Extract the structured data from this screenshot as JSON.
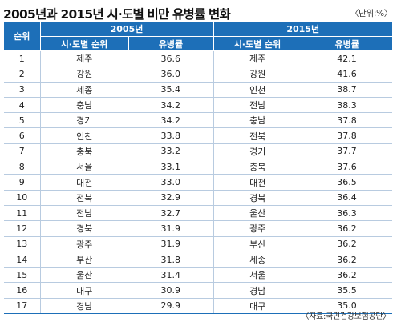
{
  "title": "2005년과 2015년 시·도별 비만 유병률 변화",
  "unit": "〈단위:%〉",
  "header": {
    "rank": "순위",
    "year1": "2005년",
    "year2": "2015년",
    "region": "시·도별 순위",
    "rate": "유병률"
  },
  "rows": [
    {
      "rank": "1",
      "r1": "제주",
      "v1": "36.6",
      "r2": "제주",
      "v2": "42.1"
    },
    {
      "rank": "2",
      "r1": "강원",
      "v1": "36.0",
      "r2": "강원",
      "v2": "41.6"
    },
    {
      "rank": "3",
      "r1": "세종",
      "v1": "35.4",
      "r2": "인천",
      "v2": "38.7"
    },
    {
      "rank": "4",
      "r1": "충남",
      "v1": "34.2",
      "r2": "전남",
      "v2": "38.3"
    },
    {
      "rank": "5",
      "r1": "경기",
      "v1": "34.2",
      "r2": "충남",
      "v2": "37.8"
    },
    {
      "rank": "6",
      "r1": "인천",
      "v1": "33.8",
      "r2": "전북",
      "v2": "37.8"
    },
    {
      "rank": "7",
      "r1": "충북",
      "v1": "33.2",
      "r2": "경기",
      "v2": "37.7"
    },
    {
      "rank": "8",
      "r1": "서울",
      "v1": "33.1",
      "r2": "충북",
      "v2": "37.6"
    },
    {
      "rank": "9",
      "r1": "대전",
      "v1": "33.0",
      "r2": "대전",
      "v2": "36.5"
    },
    {
      "rank": "10",
      "r1": "전북",
      "v1": "32.9",
      "r2": "경북",
      "v2": "36.4"
    },
    {
      "rank": "11",
      "r1": "전남",
      "v1": "32.7",
      "r2": "울산",
      "v2": "36.3"
    },
    {
      "rank": "12",
      "r1": "경북",
      "v1": "31.9",
      "r2": "광주",
      "v2": "36.2"
    },
    {
      "rank": "13",
      "r1": "광주",
      "v1": "31.9",
      "r2": "부산",
      "v2": "36.2"
    },
    {
      "rank": "14",
      "r1": "부산",
      "v1": "31.8",
      "r2": "세종",
      "v2": "36.2"
    },
    {
      "rank": "15",
      "r1": "울산",
      "v1": "31.4",
      "r2": "서울",
      "v2": "36.2"
    },
    {
      "rank": "16",
      "r1": "대구",
      "v1": "30.9",
      "r2": "경남",
      "v2": "35.5"
    },
    {
      "rank": "17",
      "r1": "경남",
      "v1": "29.9",
      "r2": "대구",
      "v2": "35.0"
    }
  ],
  "source": "〈자료:국민건강보험공단〉",
  "colors": {
    "header_bg": "#1d6fb8",
    "header_text": "#ffffff",
    "row_divider": "#b8cbe0"
  }
}
